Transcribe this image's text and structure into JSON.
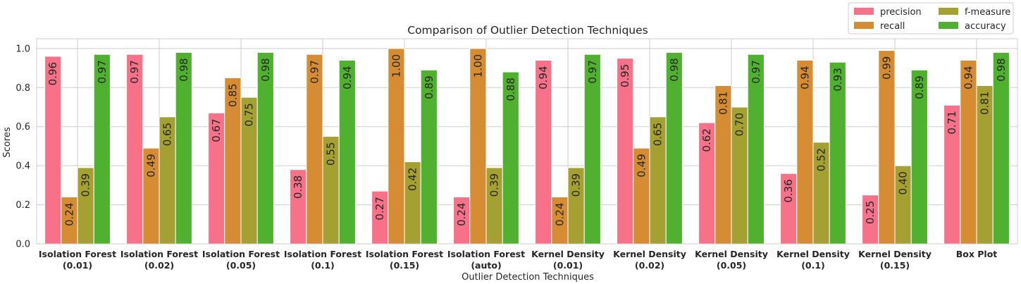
{
  "chart_data": {
    "type": "bar",
    "title": "Comparison of Outlier Detection Techniques",
    "xlabel": "Outlier Detection Techniques",
    "ylabel": "Scores",
    "ylim": [
      0,
      1.05
    ],
    "yticks": [
      "0.0",
      "0.2",
      "0.4",
      "0.6",
      "0.8",
      "1.0"
    ],
    "grid": true,
    "legend_position": "top-right",
    "categories": [
      [
        "Isolation Forest",
        "(0.01)"
      ],
      [
        "Isolation Forest",
        "(0.02)"
      ],
      [
        "Isolation Forest",
        "(0.05)"
      ],
      [
        "Isolation Forest",
        "(0.1)"
      ],
      [
        "Isolation Forest",
        "(0.15)"
      ],
      [
        "Isolation Forest",
        "(auto)"
      ],
      [
        "Kernel Density",
        "(0.01)"
      ],
      [
        "Kernel Density",
        "(0.02)"
      ],
      [
        "Kernel Density",
        "(0.05)"
      ],
      [
        "Kernel Density",
        "(0.1)"
      ],
      [
        "Kernel Density",
        "(0.15)"
      ],
      [
        "Box Plot"
      ]
    ],
    "series": [
      {
        "name": "precision",
        "color": "#f77189",
        "values": [
          0.96,
          0.97,
          0.67,
          0.38,
          0.27,
          0.24,
          0.94,
          0.95,
          0.62,
          0.36,
          0.25,
          0.71
        ],
        "labels": [
          "0.96",
          "0.97",
          "0.67",
          "0.38",
          "0.27",
          "0.24",
          "0.94",
          "0.95",
          "0.62",
          "0.36",
          "0.25",
          "0.71"
        ]
      },
      {
        "name": "recall",
        "color": "#d58c32",
        "values": [
          0.24,
          0.49,
          0.85,
          0.97,
          1.0,
          1.0,
          0.24,
          0.49,
          0.81,
          0.94,
          0.99,
          0.94
        ],
        "labels": [
          "0.24",
          "0.49",
          "0.85",
          "0.97",
          "1.00",
          "1.00",
          "0.24",
          "0.49",
          "0.81",
          "0.94",
          "0.99",
          "0.94"
        ]
      },
      {
        "name": "f-measure",
        "color": "#a4a031",
        "values": [
          0.39,
          0.65,
          0.75,
          0.55,
          0.42,
          0.39,
          0.39,
          0.65,
          0.7,
          0.52,
          0.4,
          0.81
        ],
        "labels": [
          "0.39",
          "0.65",
          "0.75",
          "0.55",
          "0.42",
          "0.39",
          "0.39",
          "0.65",
          "0.70",
          "0.52",
          "0.40",
          "0.81"
        ]
      },
      {
        "name": "accuracy",
        "color": "#50b131",
        "values": [
          0.97,
          0.98,
          0.98,
          0.94,
          0.89,
          0.88,
          0.97,
          0.98,
          0.97,
          0.93,
          0.89,
          0.98
        ],
        "labels": [
          "0.97",
          "0.98",
          "0.98",
          "0.94",
          "0.89",
          "0.88",
          "0.97",
          "0.98",
          "0.97",
          "0.93",
          "0.89",
          "0.98"
        ]
      }
    ]
  }
}
